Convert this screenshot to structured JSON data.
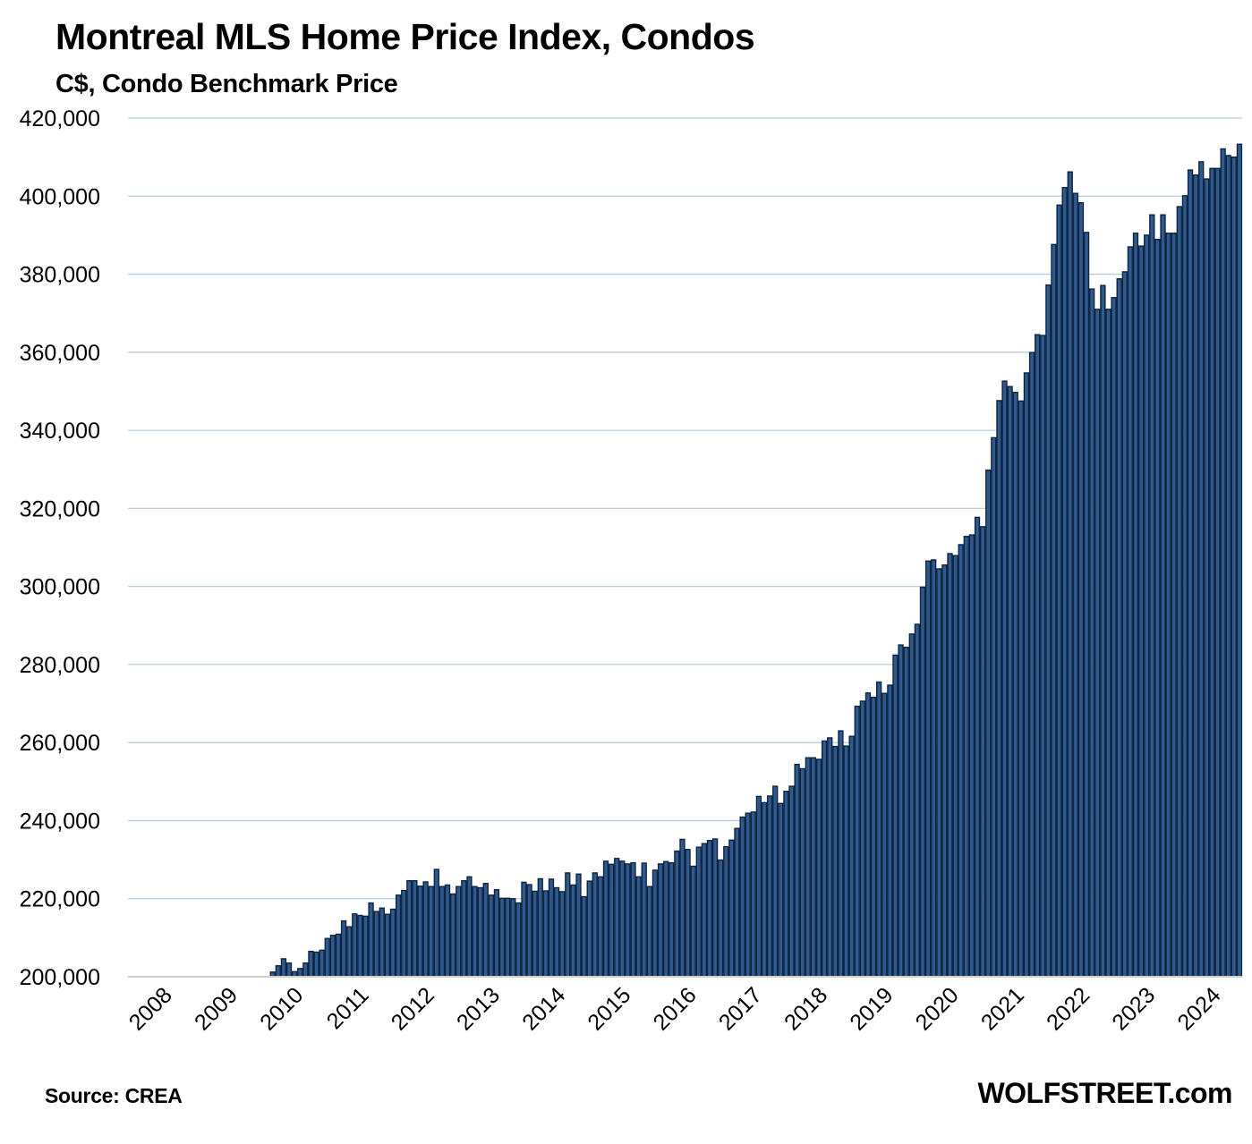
{
  "chart_data": {
    "type": "bar",
    "title": "Montreal MLS Home Price Index, Condos",
    "subtitle": "C$, Condo Benchmark Price",
    "xlabel": "",
    "ylabel": "",
    "ylim": [
      200000,
      420000
    ],
    "yticks": [
      200000,
      220000,
      240000,
      260000,
      280000,
      300000,
      320000,
      340000,
      360000,
      380000,
      400000,
      420000
    ],
    "ytick_labels": [
      "200,000",
      "220,000",
      "240,000",
      "260,000",
      "280,000",
      "300,000",
      "320,000",
      "340,000",
      "360,000",
      "380,000",
      "400,000",
      "420,000"
    ],
    "xticks": [
      "2008",
      "2009",
      "2010",
      "2011",
      "2012",
      "2013",
      "2014",
      "2015",
      "2016",
      "2017",
      "2018",
      "2019",
      "2020",
      "2021",
      "2022",
      "2023",
      "2024"
    ],
    "x_start": "2008-01",
    "series_start": "2010-03",
    "frequency": "monthly",
    "grid": true,
    "bar_color": "#2e5a8e",
    "bar_edge_color": "#0f2440",
    "grid_color": "#b8cce0",
    "series": [
      {
        "name": "Condo Benchmark Price",
        "values": [
          201200,
          202800,
          204600,
          203500,
          201300,
          202100,
          203500,
          206500,
          206300,
          206800,
          209800,
          210600,
          210900,
          214300,
          212800,
          216100,
          215700,
          215500,
          218900,
          216700,
          217600,
          216000,
          217300,
          220900,
          222100,
          224600,
          224600,
          223200,
          224300,
          223100,
          227500,
          223100,
          223500,
          221200,
          223100,
          224600,
          225600,
          223100,
          222800,
          223900,
          220900,
          222300,
          220100,
          220100,
          220000,
          218900,
          224200,
          223600,
          221900,
          225100,
          222000,
          225000,
          222800,
          221800,
          226600,
          223500,
          226300,
          220500,
          224500,
          226600,
          225600,
          229600,
          228800,
          230300,
          229600,
          228900,
          229200,
          225600,
          229100,
          223100,
          227300,
          228900,
          229500,
          229200,
          232200,
          235200,
          232600,
          228300,
          233200,
          234100,
          234900,
          235300,
          229900,
          233300,
          235000,
          238000,
          240900,
          241900,
          242200,
          246200,
          244600,
          246300,
          248800,
          244400,
          247500,
          248800,
          254400,
          253300,
          256100,
          256100,
          255700,
          260400,
          261200,
          259000,
          263000,
          259100,
          261600,
          269300,
          270600,
          272700,
          271600,
          275500,
          272600,
          274700,
          282400,
          285000,
          284400,
          287800,
          290300,
          299800,
          306500,
          306800,
          304500,
          305500,
          308400,
          307900,
          310700,
          312800,
          313200,
          317700,
          315300,
          329800,
          338100,
          347600,
          352600,
          351200,
          349700,
          347500,
          354700,
          359900,
          364500,
          364300,
          377200,
          387600,
          397700,
          402200,
          406200,
          400700,
          398300,
          390700,
          376200,
          371000,
          377100,
          371000,
          374000,
          378800,
          380600,
          387000,
          390500,
          387200,
          390000,
          395200,
          388900,
          395200,
          390500,
          390500,
          397300,
          400100,
          406700,
          405400,
          408800,
          404400,
          407100,
          407100,
          412100,
          410400,
          410000,
          413300
        ]
      }
    ],
    "source": "Source: CREA",
    "watermark": "WOLFSTREET.com"
  }
}
